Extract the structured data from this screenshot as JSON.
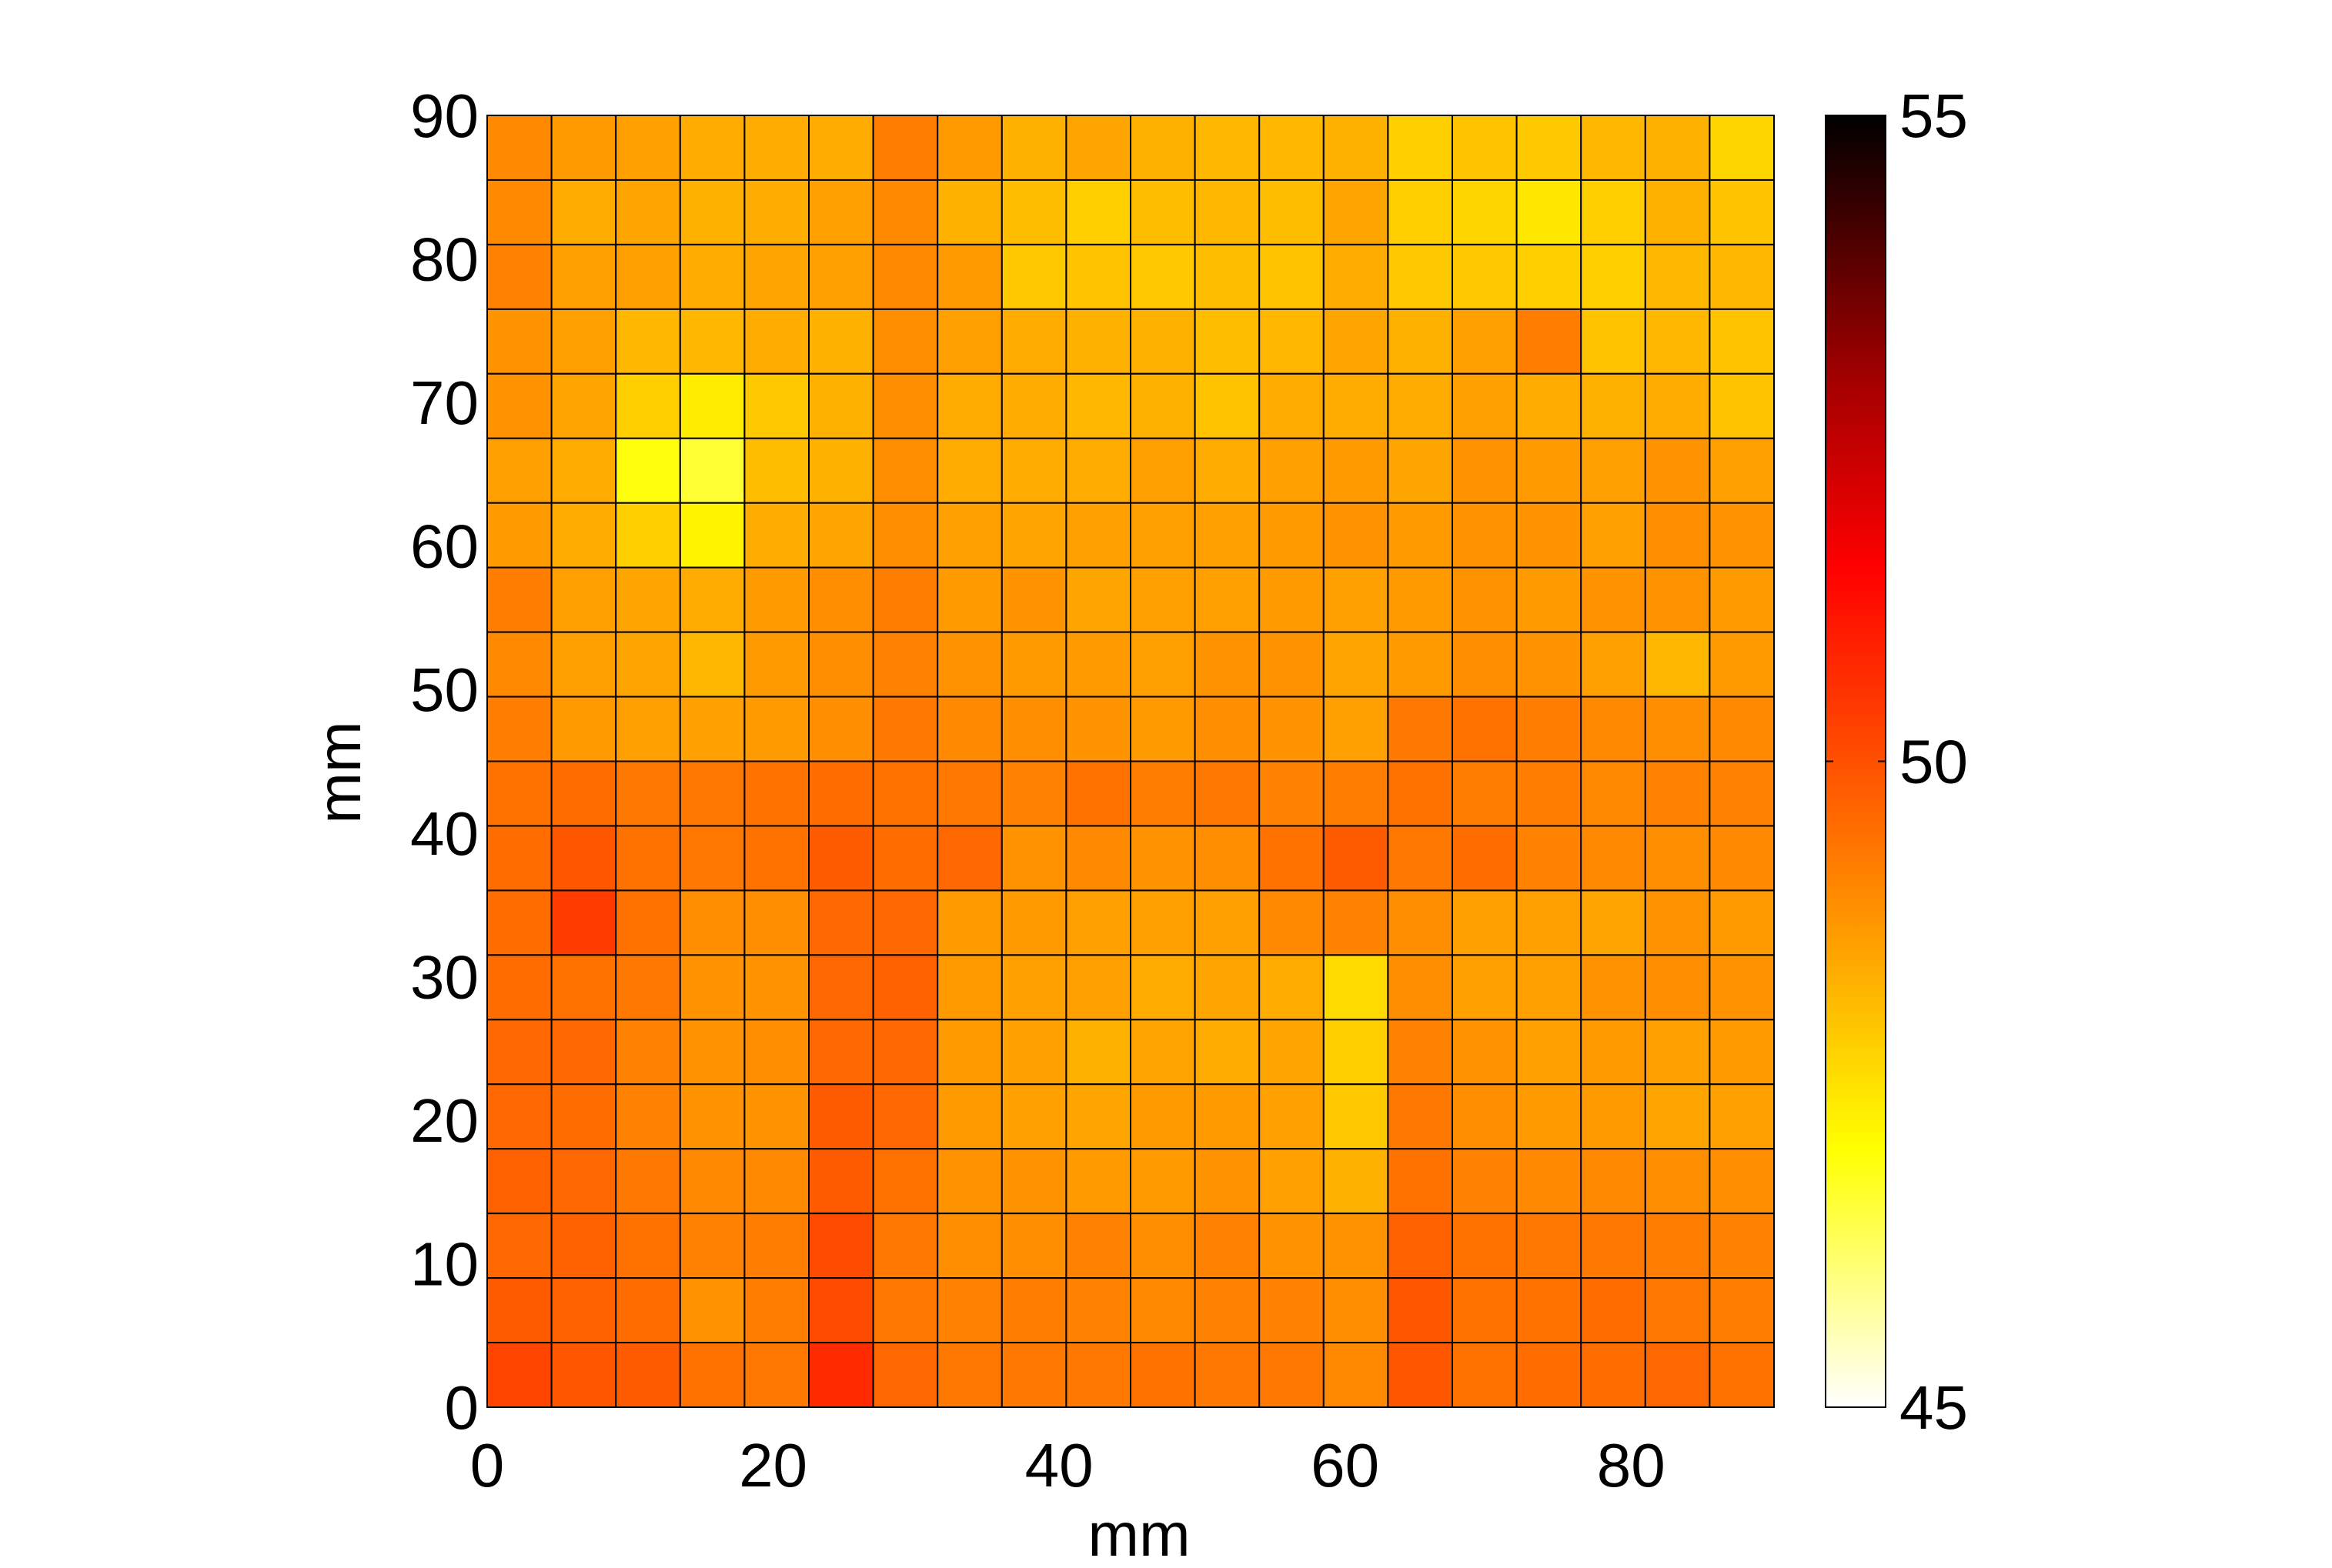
{
  "chart_data": {
    "type": "heatmap",
    "title": "",
    "xlabel": "mm",
    "ylabel": "mm",
    "xlim": [
      0,
      90
    ],
    "ylim": [
      0,
      90
    ],
    "xticks": [
      0,
      20,
      40,
      60,
      80
    ],
    "yticks": [
      0,
      10,
      20,
      30,
      40,
      50,
      60,
      70,
      80,
      90
    ],
    "colorbar": {
      "colormap": "hot-reversed",
      "min": 45,
      "max": 55,
      "ticks": [
        45,
        50,
        55
      ],
      "stops": [
        {
          "v": 45.0,
          "color": "#ffffff"
        },
        {
          "v": 47.0,
          "color": "#ffff00"
        },
        {
          "v": 48.5,
          "color": "#ffa500"
        },
        {
          "v": 50.0,
          "color": "#ff5000"
        },
        {
          "v": 51.5,
          "color": "#ff0000"
        },
        {
          "v": 53.0,
          "color": "#a00000"
        },
        {
          "v": 55.0,
          "color": "#000000"
        }
      ]
    },
    "grid": {
      "rows": 20,
      "cols": 20,
      "cell_size_mm": 4.5,
      "row_order": "top-to-bottom",
      "values": [
        [
          49.0,
          48.7,
          48.6,
          48.4,
          48.4,
          48.4,
          49.2,
          48.7,
          48.3,
          48.5,
          48.3,
          48.2,
          48.2,
          48.3,
          47.8,
          48.0,
          47.9,
          48.2,
          48.3,
          47.7
        ],
        [
          49.0,
          48.4,
          48.5,
          48.3,
          48.4,
          48.6,
          49.0,
          48.3,
          48.1,
          47.8,
          48.1,
          48.2,
          48.1,
          48.5,
          47.8,
          47.7,
          47.4,
          47.8,
          48.3,
          48.0
        ],
        [
          49.1,
          48.6,
          48.6,
          48.4,
          48.5,
          48.6,
          49.0,
          48.7,
          47.9,
          48.0,
          47.9,
          48.1,
          48.0,
          48.4,
          47.9,
          47.9,
          47.8,
          47.8,
          48.2,
          48.2
        ],
        [
          48.8,
          48.6,
          48.2,
          48.2,
          48.4,
          48.3,
          48.9,
          48.6,
          48.4,
          48.3,
          48.3,
          48.1,
          48.2,
          48.5,
          48.3,
          48.6,
          49.2,
          48.0,
          48.2,
          48.0
        ],
        [
          48.8,
          48.5,
          47.8,
          47.3,
          47.9,
          48.3,
          48.9,
          48.4,
          48.4,
          48.2,
          48.3,
          48.0,
          48.4,
          48.4,
          48.4,
          48.6,
          48.4,
          48.3,
          48.4,
          48.0
        ],
        [
          48.6,
          48.4,
          46.9,
          46.6,
          48.1,
          48.3,
          48.9,
          48.4,
          48.4,
          48.4,
          48.6,
          48.4,
          48.6,
          48.7,
          48.5,
          48.8,
          48.7,
          48.6,
          48.8,
          48.6
        ],
        [
          48.7,
          48.4,
          47.8,
          47.2,
          48.4,
          48.5,
          48.9,
          48.6,
          48.5,
          48.6,
          48.6,
          48.6,
          48.7,
          48.8,
          48.7,
          48.8,
          48.8,
          48.6,
          48.9,
          48.8
        ],
        [
          49.2,
          48.6,
          48.5,
          48.4,
          48.7,
          48.9,
          49.2,
          48.7,
          48.8,
          48.5,
          48.6,
          48.6,
          48.7,
          48.6,
          48.7,
          48.8,
          48.7,
          48.8,
          48.8,
          48.7
        ],
        [
          49.0,
          48.6,
          48.5,
          48.2,
          48.7,
          48.9,
          49.1,
          48.8,
          48.7,
          48.7,
          48.6,
          48.8,
          48.8,
          48.5,
          48.7,
          48.9,
          48.8,
          48.6,
          48.2,
          48.7
        ],
        [
          49.2,
          48.7,
          48.6,
          48.6,
          48.7,
          48.9,
          49.3,
          49.0,
          48.9,
          48.8,
          48.7,
          48.9,
          48.8,
          48.6,
          49.3,
          49.4,
          49.2,
          49.0,
          48.9,
          49.0
        ],
        [
          49.4,
          49.5,
          49.3,
          49.3,
          49.4,
          49.5,
          49.4,
          49.3,
          49.1,
          49.4,
          49.2,
          49.3,
          49.1,
          49.2,
          49.4,
          49.2,
          49.2,
          49.0,
          49.1,
          49.1
        ],
        [
          49.5,
          49.9,
          49.4,
          49.3,
          49.4,
          49.8,
          49.5,
          49.6,
          48.8,
          49.0,
          48.8,
          48.9,
          49.4,
          49.8,
          49.3,
          49.5,
          49.1,
          49.0,
          48.9,
          49.0
        ],
        [
          49.5,
          50.4,
          49.4,
          48.9,
          48.9,
          49.6,
          49.6,
          48.7,
          48.7,
          48.6,
          48.6,
          48.6,
          49.0,
          49.1,
          48.9,
          48.6,
          48.6,
          48.5,
          48.8,
          48.7
        ],
        [
          49.5,
          49.4,
          49.3,
          48.8,
          48.8,
          49.6,
          49.7,
          48.7,
          48.6,
          48.6,
          48.4,
          48.5,
          48.4,
          47.6,
          48.9,
          48.6,
          48.6,
          48.8,
          48.9,
          48.8
        ],
        [
          49.6,
          49.6,
          49.1,
          48.8,
          48.9,
          49.6,
          49.6,
          48.7,
          48.6,
          48.3,
          48.5,
          48.4,
          48.5,
          47.8,
          49.1,
          48.8,
          48.6,
          48.7,
          48.6,
          48.7
        ],
        [
          49.6,
          49.5,
          49.1,
          48.8,
          48.8,
          49.8,
          49.6,
          48.7,
          48.6,
          48.5,
          48.7,
          48.7,
          48.6,
          47.9,
          49.3,
          48.9,
          48.7,
          48.7,
          48.5,
          48.6
        ],
        [
          49.7,
          49.6,
          49.3,
          49.0,
          49.0,
          49.8,
          49.4,
          48.8,
          48.8,
          48.7,
          48.7,
          48.8,
          48.6,
          48.3,
          49.4,
          49.1,
          49.0,
          49.0,
          48.9,
          48.9
        ],
        [
          49.6,
          49.7,
          49.4,
          49.1,
          49.2,
          50.1,
          49.3,
          48.9,
          48.9,
          49.1,
          48.9,
          49.1,
          48.8,
          48.8,
          49.7,
          49.4,
          49.3,
          49.3,
          49.2,
          49.1
        ],
        [
          49.8,
          49.7,
          49.5,
          48.8,
          49.2,
          50.1,
          49.3,
          49.1,
          49.2,
          49.1,
          49.0,
          49.1,
          49.1,
          48.9,
          49.9,
          49.4,
          49.4,
          49.5,
          49.3,
          49.2
        ],
        [
          50.2,
          49.9,
          49.8,
          49.4,
          49.3,
          50.7,
          49.6,
          49.3,
          49.3,
          49.3,
          49.4,
          49.3,
          49.3,
          49.0,
          49.9,
          49.4,
          49.5,
          49.5,
          49.6,
          49.4
        ]
      ]
    }
  }
}
